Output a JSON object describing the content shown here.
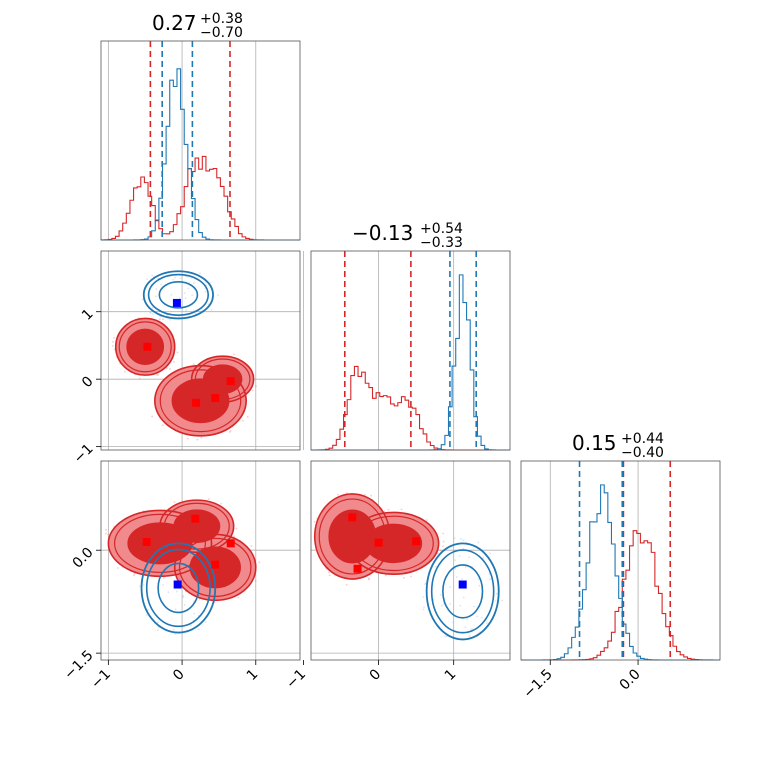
{
  "chart_data": {
    "type": "corner",
    "colors": {
      "red": "#d62728",
      "blue": "#1f77b4",
      "red_fill": "#f08a8c",
      "red_core": "#d62728",
      "marker_red": "#ff0000",
      "marker_blue": "#0000ff"
    },
    "titles": [
      {
        "value": "0.27",
        "plus": "+0.38",
        "minus": "−0.70"
      },
      {
        "value": "−0.13",
        "plus": "+0.54",
        "minus": "−0.33"
      },
      {
        "value": "0.15",
        "plus": "+0.44",
        "minus": "−0.40"
      }
    ],
    "axes": {
      "x0": {
        "range": [
          -1.1,
          1.6
        ],
        "ticks": [
          -1,
          0,
          1
        ],
        "tick_labels": [
          "−1",
          "0",
          "1"
        ]
      },
      "x1": {
        "range": [
          -0.9,
          1.75
        ],
        "ticks": [
          -1,
          0,
          1
        ],
        "tick_labels": [
          "−1",
          "0",
          "1"
        ]
      },
      "x2": {
        "range": [
          -2.0,
          1.4
        ],
        "ticks": [
          -1.5,
          0.0
        ],
        "tick_labels": [
          "−1.5",
          "0.0"
        ]
      },
      "y1": {
        "range": [
          -1.05,
          1.9
        ],
        "ticks": [
          -1,
          0,
          1
        ],
        "tick_labels": [
          "−1",
          "0",
          "1"
        ]
      },
      "y2": {
        "range": [
          -1.6,
          1.3
        ],
        "ticks": [
          -1.5,
          0.0
        ],
        "tick_labels": [
          "−1.5",
          "0.0"
        ]
      }
    },
    "histograms": [
      {
        "red_quantiles": [
          -0.43,
          0.65
        ],
        "blue_quantiles": [
          -0.27,
          0.14
        ],
        "red_modes": [
          {
            "mu": -0.55,
            "sigma": 0.14,
            "w": 0.33
          },
          {
            "mu": 0.15,
            "sigma": 0.14,
            "w": 0.33
          },
          {
            "mu": 0.45,
            "sigma": 0.16,
            "w": 0.34
          }
        ],
        "blue_modes": [
          {
            "mu": -0.07,
            "sigma": 0.13,
            "w": 1.0
          }
        ],
        "red_peak_frac": 0.42,
        "blue_peak_frac": 0.86
      },
      {
        "red_quantiles": [
          -0.45,
          0.43
        ],
        "blue_quantiles": [
          0.95,
          1.3
        ],
        "red_modes": [
          {
            "mu": -0.28,
            "sigma": 0.13,
            "w": 0.45
          },
          {
            "mu": 0.08,
            "sigma": 0.16,
            "w": 0.3
          },
          {
            "mu": 0.42,
            "sigma": 0.14,
            "w": 0.25
          }
        ],
        "blue_modes": [
          {
            "mu": 1.12,
            "sigma": 0.1,
            "w": 1.0
          }
        ],
        "red_peak_frac": 0.42,
        "blue_peak_frac": 0.88
      },
      {
        "red_quantiles": [
          -0.25,
          0.55
        ],
        "blue_quantiles": [
          -1.0,
          -0.27
        ],
        "red_modes": [
          {
            "mu": 0.05,
            "sigma": 0.28,
            "w": 1.0
          }
        ],
        "blue_modes": [
          {
            "mu": -0.63,
            "sigma": 0.23,
            "w": 1.0
          }
        ],
        "red_peak_frac": 0.65,
        "blue_peak_frac": 0.88
      }
    ],
    "scatter_panels": [
      {
        "name": "p0-vs-p1",
        "xaxis": "x0",
        "yaxis": "y1",
        "red_blobs": [
          {
            "x": -0.5,
            "y": 0.48,
            "rx": 0.4,
            "ry": 0.42
          },
          {
            "x": 0.25,
            "y": -0.32,
            "rx": 0.62,
            "ry": 0.52
          },
          {
            "x": 0.55,
            "y": 0.0,
            "rx": 0.42,
            "ry": 0.34
          }
        ],
        "blue_blobs": [
          {
            "x": -0.05,
            "y": 1.25,
            "rx": 0.47,
            "ry": 0.35
          }
        ],
        "red_markers": [
          [
            -0.47,
            0.48
          ],
          [
            0.19,
            -0.35
          ],
          [
            0.45,
            -0.28
          ],
          [
            0.66,
            -0.03
          ]
        ],
        "blue_markers": [
          [
            -0.07,
            1.13
          ]
        ]
      },
      {
        "name": "p0-vs-p2",
        "xaxis": "x0",
        "yaxis": "y2",
        "red_blobs": [
          {
            "x": -0.3,
            "y": 0.1,
            "rx": 0.7,
            "ry": 0.48
          },
          {
            "x": 0.2,
            "y": 0.35,
            "rx": 0.5,
            "ry": 0.38
          },
          {
            "x": 0.45,
            "y": -0.25,
            "rx": 0.55,
            "ry": 0.48
          }
        ],
        "blue_blobs": [
          {
            "x": -0.05,
            "y": -0.55,
            "rx": 0.5,
            "ry": 0.65
          }
        ],
        "red_markers": [
          [
            -0.48,
            0.12
          ],
          [
            0.18,
            0.46
          ],
          [
            0.66,
            0.1
          ],
          [
            0.45,
            -0.21
          ]
        ],
        "blue_markers": [
          [
            -0.06,
            -0.5
          ]
        ]
      },
      {
        "name": "p1-vs-p2",
        "xaxis": "x1",
        "yaxis": "y2",
        "red_blobs": [
          {
            "x": -0.35,
            "y": 0.2,
            "rx": 0.5,
            "ry": 0.62
          },
          {
            "x": 0.2,
            "y": 0.1,
            "rx": 0.6,
            "ry": 0.45
          }
        ],
        "blue_blobs": [
          {
            "x": 1.12,
            "y": -0.6,
            "rx": 0.48,
            "ry": 0.7
          }
        ],
        "red_markers": [
          [
            -0.35,
            0.48
          ],
          [
            0.0,
            0.11
          ],
          [
            0.5,
            0.13
          ],
          [
            -0.28,
            -0.27
          ]
        ],
        "blue_markers": [
          [
            1.12,
            -0.5
          ]
        ]
      }
    ]
  }
}
